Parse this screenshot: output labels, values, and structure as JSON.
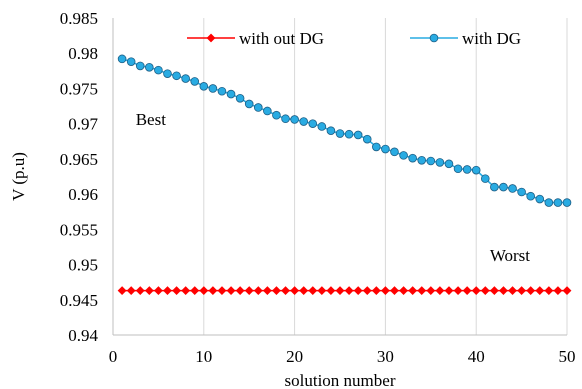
{
  "chart_data": {
    "type": "line",
    "title": "",
    "xlabel": "solution number",
    "ylabel": "V (p.u)",
    "xlim": [
      0,
      50
    ],
    "ylim": [
      0.94,
      0.985
    ],
    "x_ticks": [
      "0",
      "10",
      "20",
      "30",
      "40",
      "50"
    ],
    "y_ticks": [
      "0.94",
      "0.945",
      "0.95",
      "0.955",
      "0.96",
      "0.965",
      "0.97",
      "0.975",
      "0.98",
      "0.985"
    ],
    "x_tick_values": [
      0,
      10,
      20,
      30,
      40,
      50
    ],
    "y_tick_values": [
      0.94,
      0.945,
      0.95,
      0.955,
      0.96,
      0.965,
      0.97,
      0.975,
      0.98,
      0.985
    ],
    "grid": "vertical",
    "legend_position": "top",
    "x": [
      1,
      2,
      3,
      4,
      5,
      6,
      7,
      8,
      9,
      10,
      11,
      12,
      13,
      14,
      15,
      16,
      17,
      18,
      19,
      20,
      21,
      22,
      23,
      24,
      25,
      26,
      27,
      28,
      29,
      30,
      31,
      32,
      33,
      34,
      35,
      36,
      37,
      38,
      39,
      40,
      41,
      42,
      43,
      44,
      45,
      46,
      47,
      48,
      49,
      50
    ],
    "series": [
      {
        "name": "with out DG",
        "color": "#ff0000",
        "marker": "diamond",
        "values": [
          0.9463,
          0.9463,
          0.9463,
          0.9463,
          0.9463,
          0.9463,
          0.9463,
          0.9463,
          0.9463,
          0.9463,
          0.9463,
          0.9463,
          0.9463,
          0.9463,
          0.9463,
          0.9463,
          0.9463,
          0.9463,
          0.9463,
          0.9463,
          0.9463,
          0.9463,
          0.9463,
          0.9463,
          0.9463,
          0.9463,
          0.9463,
          0.9463,
          0.9463,
          0.9463,
          0.9463,
          0.9463,
          0.9463,
          0.9463,
          0.9463,
          0.9463,
          0.9463,
          0.9463,
          0.9463,
          0.9463,
          0.9463,
          0.9463,
          0.9463,
          0.9463,
          0.9463,
          0.9463,
          0.9463,
          0.9463,
          0.9463,
          0.9463
        ]
      },
      {
        "name": "with DG",
        "color": "#29abe2",
        "marker": "circle",
        "values": [
          0.9792,
          0.9788,
          0.9782,
          0.978,
          0.9776,
          0.9771,
          0.9768,
          0.9764,
          0.976,
          0.9753,
          0.975,
          0.9746,
          0.9742,
          0.9736,
          0.9728,
          0.9723,
          0.9718,
          0.9712,
          0.9707,
          0.9706,
          0.9703,
          0.97,
          0.9696,
          0.969,
          0.9686,
          0.9685,
          0.9684,
          0.9678,
          0.9667,
          0.9664,
          0.966,
          0.9655,
          0.9651,
          0.9648,
          0.9647,
          0.9645,
          0.9643,
          0.9636,
          0.9635,
          0.9634,
          0.9622,
          0.961,
          0.961,
          0.9608,
          0.9603,
          0.9597,
          0.9593,
          0.9588,
          0.9588,
          0.9588
        ]
      }
    ],
    "annotations": [
      {
        "text": "Best",
        "x": 2.5,
        "y": 0.9698
      },
      {
        "text": "Worst",
        "x": 41.5,
        "y": 0.9505
      }
    ]
  }
}
